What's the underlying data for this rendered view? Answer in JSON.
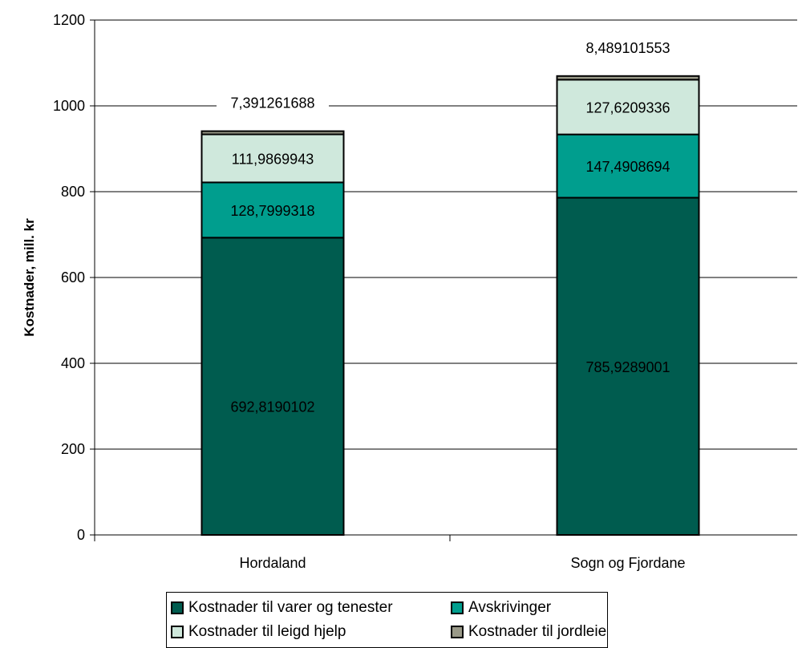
{
  "chart_data": {
    "type": "bar",
    "stacked": true,
    "categories": [
      "Hordaland",
      "Sogn og Fjordane"
    ],
    "ylabel": "Kostnader, mill. kr",
    "ylim": [
      0,
      1200
    ],
    "yticks": [
      0,
      200,
      400,
      600,
      800,
      1000,
      1200
    ],
    "grid": true,
    "legend_placement": "bottom",
    "series": [
      {
        "name": "Kostnader til varer og tenester",
        "color": "#005c4f",
        "values": [
          692.8190102,
          785.9289001
        ],
        "labels": [
          "692,8190102",
          "785,9289001"
        ]
      },
      {
        "name": "Avskrivinger",
        "color": "#009e8e",
        "values": [
          128.7999318,
          147.4908694
        ],
        "labels": [
          "128,7999318",
          "147,4908694"
        ]
      },
      {
        "name": "Kostnader til leigd hjelp",
        "color": "#cfe8dc",
        "values": [
          111.9869943,
          127.6209336
        ],
        "labels": [
          "111,9869943",
          "127,6209336"
        ]
      },
      {
        "name": "Kostnader til jordleie",
        "color": "#999988",
        "values": [
          7.391261688,
          8.489101553
        ],
        "labels": [
          "7,391261688",
          "8,489101553"
        ]
      }
    ]
  }
}
